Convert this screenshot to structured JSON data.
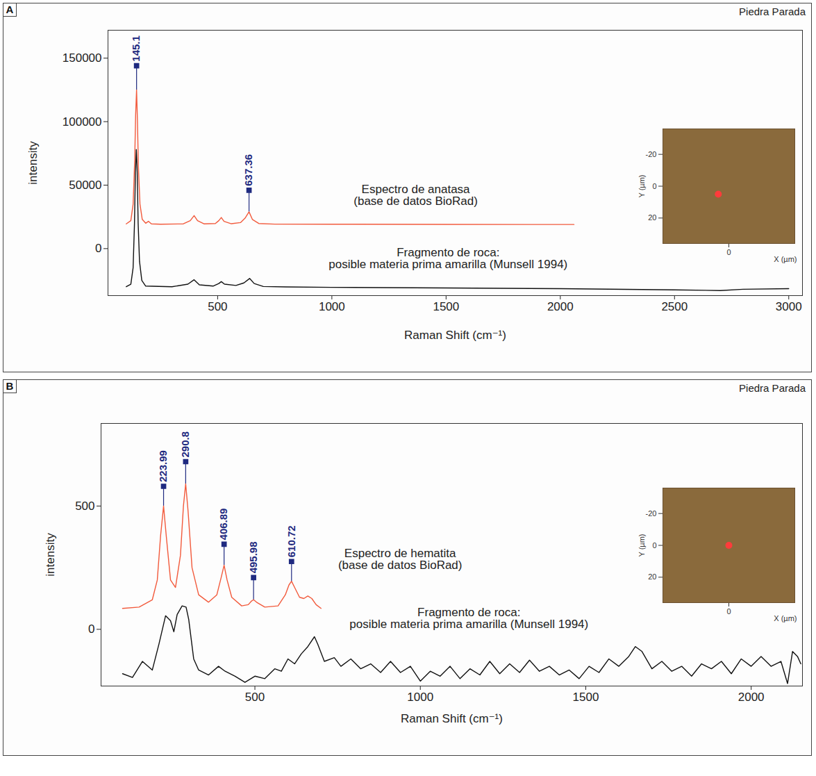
{
  "chart_data": [
    {
      "type": "line",
      "panel_label": "A",
      "site": "Piedra Parada",
      "x_label": "Raman Shift (cm⁻¹)",
      "y_label": "intensity",
      "xlim": [
        20,
        3060
      ],
      "ylim": [
        -37000,
        172000
      ],
      "xticks": [
        500,
        1000,
        1500,
        2000,
        2500,
        3000
      ],
      "yticks": [
        0,
        50000,
        100000,
        150000
      ],
      "series": [
        {
          "color": "#f25a3c",
          "x": [
            100,
            120,
            130,
            137,
            141,
            145.1,
            149,
            153,
            160,
            170,
            185,
            197,
            210,
            250,
            350,
            380,
            397,
            412,
            440,
            490,
            505,
            516,
            528,
            560,
            600,
            620,
            637.36,
            652,
            680,
            750,
            1000,
            1500,
            2060
          ],
          "values": [
            19500,
            22000,
            35000,
            70000,
            105000,
            125000,
            100000,
            65000,
            35000,
            23000,
            20000,
            21500,
            19500,
            19200,
            19500,
            22000,
            26000,
            22000,
            19500,
            19800,
            22000,
            24500,
            21500,
            19600,
            20500,
            24000,
            29000,
            23000,
            19800,
            19300,
            19200,
            19100,
            19000
          ],
          "peaks": [
            {
              "x": 145.1,
              "y": 144000
            },
            {
              "x": 637.36,
              "y": 46000
            }
          ]
        },
        {
          "color": "#111111",
          "x": [
            100,
            120,
            130,
            136,
            140,
            144,
            148,
            152,
            158,
            168,
            185,
            300,
            370,
            397,
            420,
            480,
            505,
            516,
            530,
            580,
            615,
            640,
            660,
            700,
            800,
            1000,
            1500,
            2000,
            2500,
            2700,
            2800,
            3000
          ],
          "values": [
            -30000,
            -28000,
            -15000,
            20000,
            60000,
            78000,
            60000,
            20000,
            -10000,
            -25000,
            -29500,
            -30000,
            -28000,
            -24500,
            -28500,
            -29500,
            -27500,
            -26000,
            -28000,
            -29000,
            -27000,
            -23500,
            -27500,
            -29800,
            -30200,
            -30500,
            -31000,
            -31500,
            -32500,
            -33000,
            -32000,
            -31500
          ]
        }
      ],
      "annotations": [
        {
          "text": [
            "Espectro de anatasa",
            "(base de datos BioRad)"
          ],
          "x": 1367,
          "y": 42000
        },
        {
          "text": [
            "Fragmento de roca:",
            "posible materia prima amarilla (Munsell 1994)"
          ],
          "x": 1509,
          "y": -8000
        }
      ],
      "inset": {
        "x_label": "X (µm)",
        "y_label": "Y (µm)",
        "xlim": [
          -50,
          50
        ],
        "ylim": [
          -36,
          36
        ],
        "xticks": [
          0
        ],
        "yticks": [
          -20,
          0,
          20
        ],
        "point": [
          -8,
          5
        ]
      }
    },
    {
      "type": "line",
      "panel_label": "B",
      "site": "Piedra Parada",
      "x_label": "Raman Shift (cm⁻¹)",
      "y_label": "intensity",
      "xlim": [
        35,
        2155
      ],
      "ylim": [
        -230,
        835
      ],
      "xticks": [
        500,
        1000,
        1500,
        2000
      ],
      "yticks": [
        0,
        500
      ],
      "series": [
        {
          "color": "#f25a3c",
          "x": [
            100,
            150,
            190,
            205,
            215,
            223.99,
            232,
            245,
            260,
            275,
            284,
            290.8,
            298,
            310,
            330,
            360,
            385,
            398,
            406.89,
            416,
            430,
            460,
            480,
            490,
            495.98,
            505,
            530,
            570,
            592,
            603,
            610.72,
            620,
            635,
            648,
            660,
            672,
            685,
            700
          ],
          "values": [
            85,
            90,
            120,
            200,
            380,
            500,
            380,
            200,
            170,
            300,
            500,
            590,
            480,
            250,
            140,
            110,
            140,
            210,
            260,
            200,
            130,
            95,
            100,
            115,
            120,
            110,
            90,
            95,
            140,
            180,
            195,
            170,
            130,
            125,
            135,
            125,
            100,
            85
          ],
          "peaks": [
            {
              "x": 223.99,
              "y": 580
            },
            {
              "x": 290.8,
              "y": 680
            },
            {
              "x": 406.89,
              "y": 345
            },
            {
              "x": 495.98,
              "y": 210
            },
            {
              "x": 610.72,
              "y": 275
            }
          ]
        },
        {
          "color": "#111111",
          "x": [
            100,
            130,
            160,
            190,
            210,
            230,
            245,
            255,
            265,
            280,
            292,
            300,
            315,
            330,
            360,
            390,
            410,
            440,
            470,
            500,
            530,
            560,
            580,
            600,
            620,
            640,
            660,
            680,
            690,
            710,
            740,
            760,
            790,
            820,
            850,
            880,
            910,
            940,
            970,
            1000,
            1030,
            1060,
            1090,
            1120,
            1150,
            1180,
            1210,
            1240,
            1270,
            1300,
            1330,
            1360,
            1390,
            1420,
            1450,
            1480,
            1510,
            1540,
            1570,
            1600,
            1630,
            1650,
            1670,
            1700,
            1730,
            1760,
            1790,
            1820,
            1850,
            1880,
            1910,
            1940,
            1970,
            2000,
            2030,
            2060,
            2090,
            2110,
            2125,
            2140,
            2150
          ],
          "values": [
            -180,
            -195,
            -130,
            -165,
            -60,
            55,
            35,
            -10,
            60,
            95,
            90,
            40,
            -120,
            -165,
            -185,
            -150,
            -170,
            -190,
            -215,
            -190,
            -200,
            -160,
            -170,
            -120,
            -140,
            -100,
            -70,
            -30,
            -60,
            -130,
            -115,
            -150,
            -120,
            -160,
            -140,
            -175,
            -130,
            -175,
            -150,
            -210,
            -170,
            -190,
            -150,
            -200,
            -160,
            -185,
            -130,
            -180,
            -140,
            -175,
            -125,
            -170,
            -150,
            -185,
            -165,
            -200,
            -150,
            -175,
            -120,
            -150,
            -110,
            -70,
            -90,
            -160,
            -130,
            -170,
            -150,
            -190,
            -140,
            -160,
            -130,
            -180,
            -120,
            -150,
            -110,
            -150,
            -130,
            -220,
            -90,
            -110,
            -140
          ]
        }
      ],
      "annotations": [
        {
          "text": [
            "Espectro de hematita",
            "(base de datos BioRad)"
          ],
          "x": 939,
          "y": 284
        },
        {
          "text": [
            "Fragmento de roca:",
            "posible materia prima amarilla (Munsell 1994)"
          ],
          "x": 1147,
          "y": 44
        }
      ],
      "inset": {
        "x_label": "X (µm)",
        "y_label": "Y (µm)",
        "xlim": [
          -50,
          50
        ],
        "ylim": [
          -36,
          36
        ],
        "xticks": [
          0
        ],
        "yticks": [
          -20,
          0,
          20
        ],
        "point": [
          0,
          0
        ]
      }
    }
  ]
}
